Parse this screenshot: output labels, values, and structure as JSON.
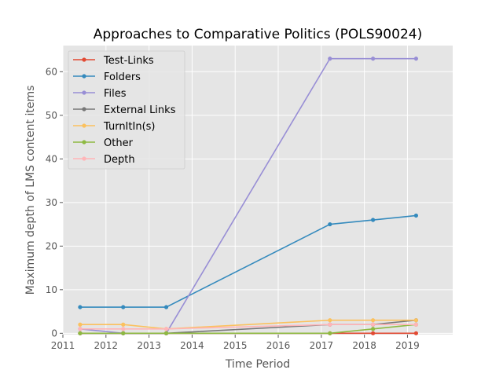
{
  "chart_data": {
    "type": "line",
    "title": "Approaches to Comparative Politics (POLS90024)",
    "xlabel": "Time Period",
    "ylabel": "Maximum depth of LMS content items",
    "xlim": [
      2011,
      2020.05
    ],
    "ylim": [
      -0.3,
      66
    ],
    "xticks": [
      "2011",
      "2012",
      "2013",
      "2014",
      "2015",
      "2016",
      "2017",
      "2018",
      "2019"
    ],
    "yticks": [
      "0",
      "10",
      "20",
      "30",
      "40",
      "50",
      "60"
    ],
    "grid": true,
    "legend_position": "top-left",
    "x": [
      2011.4,
      2012.4,
      2013.4,
      2017.2,
      2018.2,
      2019.2
    ],
    "series": [
      {
        "name": "Test-Links",
        "color": "#E24A33",
        "values": [
          0,
          0,
          0,
          0,
          0,
          0
        ]
      },
      {
        "name": "Folders",
        "color": "#348ABD",
        "values": [
          6,
          6,
          6,
          25,
          26,
          27
        ]
      },
      {
        "name": "Files",
        "color": "#988ED5",
        "values": [
          1,
          0,
          0,
          63,
          63,
          63
        ]
      },
      {
        "name": "External Links",
        "color": "#777777",
        "values": [
          0,
          0,
          0,
          2,
          2,
          3
        ]
      },
      {
        "name": "TurnItIn(s)",
        "color": "#FBC15E",
        "values": [
          2,
          2,
          1,
          3,
          3,
          3
        ]
      },
      {
        "name": "Other",
        "color": "#8EBA42",
        "values": [
          0,
          0,
          0,
          0,
          1,
          2
        ]
      },
      {
        "name": "Depth",
        "color": "#FFB5B8",
        "values": [
          1,
          1,
          1,
          2,
          2,
          2
        ]
      }
    ]
  }
}
